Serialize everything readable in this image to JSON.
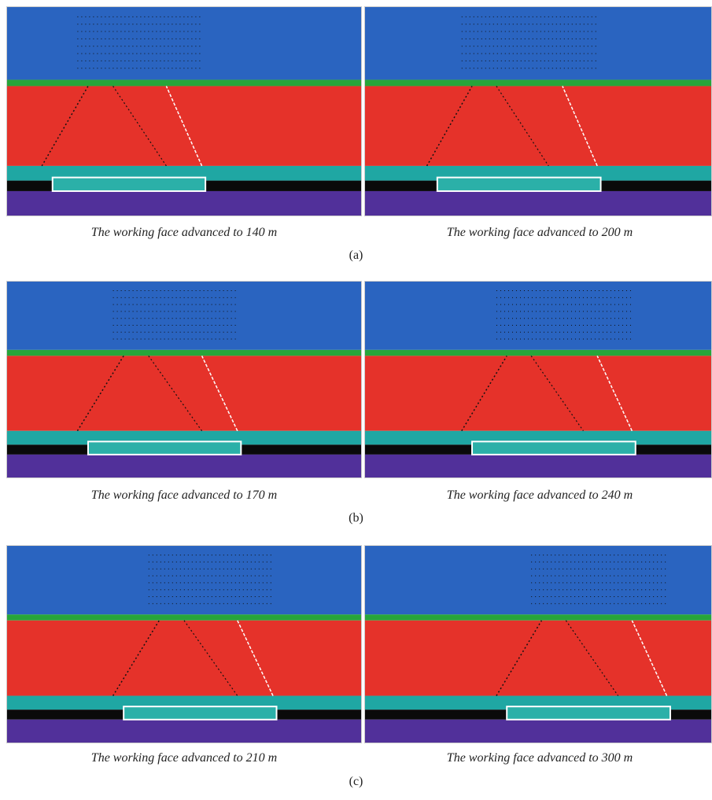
{
  "figures": [
    {
      "label": "(a)",
      "panels": [
        {
          "caption": "The working face advanced to 140 m"
        },
        {
          "caption": "The working face advanced to 200 m"
        }
      ]
    },
    {
      "label": "(b)",
      "panels": [
        {
          "caption": "The working face advanced to 170 m"
        },
        {
          "caption": "The working face advanced to 240 m"
        }
      ]
    },
    {
      "label": "(c)",
      "panels": [
        {
          "caption": "The working face advanced to 210 m"
        },
        {
          "caption": "The working face advanced to 300 m"
        }
      ]
    }
  ]
}
